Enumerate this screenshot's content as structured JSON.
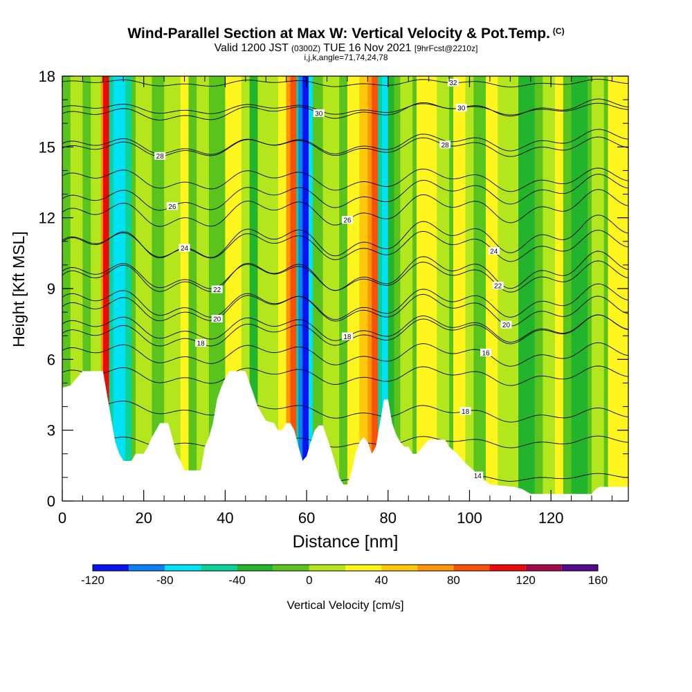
{
  "header": {
    "title": "Wind-Parallel Section at Max W: Vertical Velocity & Pot.Temp.",
    "title_mark": "(C)",
    "subtitle_a": "Valid 1200 JST",
    "subtitle_b": "(0300Z)",
    "subtitle_c": "TUE 16 Nov 2021",
    "subtitle_d": "[9hrFcst@2210z]",
    "params": "i,j,k,angle=71,74,24,78"
  },
  "chart_data": {
    "type": "heatmap",
    "xlabel": "Distance [nm]",
    "ylabel": "Height [Kft MSL]",
    "xlim": [
      0,
      139
    ],
    "ylim": [
      0,
      18
    ],
    "x_ticks": [
      0,
      20,
      40,
      60,
      80,
      100,
      120
    ],
    "y_ticks": [
      0,
      3,
      6,
      9,
      12,
      15,
      18
    ],
    "colorbar": {
      "label": "Vertical Velocity [cm/s]",
      "ticks": [
        -120,
        -80,
        -40,
        0,
        40,
        80,
        120,
        160
      ],
      "bins": [
        {
          "from": -120,
          "to": -100,
          "color": "#0a14f0"
        },
        {
          "from": -100,
          "to": -80,
          "color": "#0a82f5"
        },
        {
          "from": -80,
          "to": -60,
          "color": "#00e1f5"
        },
        {
          "from": -60,
          "to": -40,
          "color": "#0ad29b"
        },
        {
          "from": -40,
          "to": -20,
          "color": "#23b42d"
        },
        {
          "from": -20,
          "to": 0,
          "color": "#5ac31e"
        },
        {
          "from": 0,
          "to": 20,
          "color": "#b4e61e"
        },
        {
          "from": 20,
          "to": 40,
          "color": "#fff51e"
        },
        {
          "from": 40,
          "to": 60,
          "color": "#ffc80a"
        },
        {
          "from": 60,
          "to": 80,
          "color": "#ff960a"
        },
        {
          "from": 80,
          "to": 100,
          "color": "#fa500a"
        },
        {
          "from": 100,
          "to": 120,
          "color": "#eb0a0a"
        },
        {
          "from": 120,
          "to": 140,
          "color": "#a00a4b"
        },
        {
          "from": 140,
          "to": 160,
          "color": "#550a8c"
        }
      ]
    },
    "velocity_bands": [
      {
        "x": 0,
        "w": 139,
        "value": -10
      },
      {
        "x": 2,
        "w": 3,
        "value": 10
      },
      {
        "x": 7,
        "w": 3,
        "value": 10
      },
      {
        "x": 9.5,
        "w": 1.5,
        "value": 70
      },
      {
        "x": 10,
        "w": 1.5,
        "value": 110
      },
      {
        "x": 11.5,
        "w": 1,
        "value": -50
      },
      {
        "x": 12.5,
        "w": 3,
        "value": -70
      },
      {
        "x": 15.5,
        "w": 1.5,
        "value": -50
      },
      {
        "x": 18,
        "w": 4,
        "value": 10
      },
      {
        "x": 25,
        "w": 4,
        "value": 10
      },
      {
        "x": 29,
        "w": 2,
        "value": 30
      },
      {
        "x": 33,
        "w": 3,
        "value": 10
      },
      {
        "x": 40,
        "w": 4,
        "value": 30
      },
      {
        "x": 44,
        "w": 2,
        "value": 10
      },
      {
        "x": 46,
        "w": 2,
        "value": -30
      },
      {
        "x": 48,
        "w": 5,
        "value": 10
      },
      {
        "x": 53,
        "w": 2,
        "value": 30
      },
      {
        "x": 55,
        "w": 2.5,
        "value": 60
      },
      {
        "x": 56,
        "w": 1.5,
        "value": 90
      },
      {
        "x": 57.5,
        "w": 1,
        "value": -60
      },
      {
        "x": 58,
        "w": 1.5,
        "value": -90
      },
      {
        "x": 59,
        "w": 1.5,
        "value": -110
      },
      {
        "x": 60.5,
        "w": 1,
        "value": -70
      },
      {
        "x": 64,
        "w": 4,
        "value": 10
      },
      {
        "x": 70,
        "w": 3,
        "value": 30
      },
      {
        "x": 73,
        "w": 3,
        "value": 50
      },
      {
        "x": 75,
        "w": 2.5,
        "value": 70
      },
      {
        "x": 76,
        "w": 1.5,
        "value": 90
      },
      {
        "x": 77.5,
        "w": 1,
        "value": -50
      },
      {
        "x": 78.5,
        "w": 1.5,
        "value": -70
      },
      {
        "x": 80,
        "w": 1.5,
        "value": -30
      },
      {
        "x": 83,
        "w": 3,
        "value": 10
      },
      {
        "x": 87,
        "w": 5,
        "value": 30
      },
      {
        "x": 92,
        "w": 3,
        "value": 10
      },
      {
        "x": 96,
        "w": 3,
        "value": 30
      },
      {
        "x": 99,
        "w": 2,
        "value": 10
      },
      {
        "x": 104,
        "w": 3,
        "value": 30
      },
      {
        "x": 107,
        "w": 5,
        "value": 10
      },
      {
        "x": 112,
        "w": 4,
        "value": -30
      },
      {
        "x": 118,
        "w": 4,
        "value": 10
      },
      {
        "x": 121,
        "w": 2,
        "value": 30
      },
      {
        "x": 125,
        "w": 4,
        "value": -30
      },
      {
        "x": 130,
        "w": 3,
        "value": 10
      },
      {
        "x": 134,
        "w": 5,
        "value": 30
      }
    ],
    "terrain": [
      {
        "x": 0,
        "h": 4.8
      },
      {
        "x": 2,
        "h": 4.9
      },
      {
        "x": 4,
        "h": 5.3
      },
      {
        "x": 5,
        "h": 5.5
      },
      {
        "x": 10,
        "h": 5.5
      },
      {
        "x": 11,
        "h": 4.5
      },
      {
        "x": 12,
        "h": 3.5
      },
      {
        "x": 13,
        "h": 2.5
      },
      {
        "x": 14,
        "h": 2.0
      },
      {
        "x": 15,
        "h": 1.7
      },
      {
        "x": 17,
        "h": 1.7
      },
      {
        "x": 18,
        "h": 2.0
      },
      {
        "x": 20,
        "h": 2.0
      },
      {
        "x": 21,
        "h": 2.3
      },
      {
        "x": 22,
        "h": 2.7
      },
      {
        "x": 23,
        "h": 3.0
      },
      {
        "x": 24,
        "h": 3.3
      },
      {
        "x": 26,
        "h": 3.3
      },
      {
        "x": 27,
        "h": 2.7
      },
      {
        "x": 28,
        "h": 2.0
      },
      {
        "x": 29,
        "h": 1.7
      },
      {
        "x": 30,
        "h": 1.3
      },
      {
        "x": 34,
        "h": 1.3
      },
      {
        "x": 35,
        "h": 2.3
      },
      {
        "x": 36,
        "h": 2.7
      },
      {
        "x": 37,
        "h": 3.3
      },
      {
        "x": 38,
        "h": 4.3
      },
      {
        "x": 39,
        "h": 4.8
      },
      {
        "x": 40,
        "h": 5.2
      },
      {
        "x": 41,
        "h": 5.5
      },
      {
        "x": 45,
        "h": 5.5
      },
      {
        "x": 46,
        "h": 5.0
      },
      {
        "x": 47,
        "h": 4.5
      },
      {
        "x": 48,
        "h": 4.0
      },
      {
        "x": 49,
        "h": 3.7
      },
      {
        "x": 50,
        "h": 3.4
      },
      {
        "x": 52,
        "h": 3.3
      },
      {
        "x": 53,
        "h": 3.0
      },
      {
        "x": 54,
        "h": 3.0
      },
      {
        "x": 55,
        "h": 3.3
      },
      {
        "x": 56,
        "h": 3.3
      },
      {
        "x": 57,
        "h": 3.0
      },
      {
        "x": 58,
        "h": 2.3
      },
      {
        "x": 58.5,
        "h": 2.0
      },
      {
        "x": 59,
        "h": 1.7
      },
      {
        "x": 60,
        "h": 1.9
      },
      {
        "x": 61,
        "h": 2.5
      },
      {
        "x": 62,
        "h": 3.0
      },
      {
        "x": 63,
        "h": 3.2
      },
      {
        "x": 64,
        "h": 3.2
      },
      {
        "x": 65,
        "h": 2.7
      },
      {
        "x": 66,
        "h": 2.2
      },
      {
        "x": 67,
        "h": 1.6
      },
      {
        "x": 68,
        "h": 1.0
      },
      {
        "x": 69,
        "h": 0.7
      },
      {
        "x": 70,
        "h": 0.7
      },
      {
        "x": 71,
        "h": 1.2
      },
      {
        "x": 72,
        "h": 2.0
      },
      {
        "x": 73,
        "h": 2.5
      },
      {
        "x": 74,
        "h": 2.7
      },
      {
        "x": 75,
        "h": 2.5
      },
      {
        "x": 76,
        "h": 2.0
      },
      {
        "x": 77,
        "h": 2.3
      },
      {
        "x": 78,
        "h": 3.3
      },
      {
        "x": 79,
        "h": 4.3
      },
      {
        "x": 80,
        "h": 4.3
      },
      {
        "x": 81,
        "h": 3.3
      },
      {
        "x": 82,
        "h": 2.8
      },
      {
        "x": 83,
        "h": 2.5
      },
      {
        "x": 84,
        "h": 2.3
      },
      {
        "x": 85,
        "h": 2.3
      },
      {
        "x": 86,
        "h": 2.0
      },
      {
        "x": 87,
        "h": 2.0
      },
      {
        "x": 88,
        "h": 2.2
      },
      {
        "x": 89,
        "h": 2.4
      },
      {
        "x": 90,
        "h": 2.6
      },
      {
        "x": 94,
        "h": 2.6
      },
      {
        "x": 95,
        "h": 2.3
      },
      {
        "x": 97,
        "h": 2.0
      },
      {
        "x": 99,
        "h": 1.6
      },
      {
        "x": 101,
        "h": 1.3
      },
      {
        "x": 103,
        "h": 1.0
      },
      {
        "x": 105,
        "h": 0.7
      },
      {
        "x": 111,
        "h": 0.6
      },
      {
        "x": 113,
        "h": 0.5
      },
      {
        "x": 115,
        "h": 0.3
      },
      {
        "x": 130,
        "h": 0.3
      },
      {
        "x": 131,
        "h": 0.5
      },
      {
        "x": 132,
        "h": 0.6
      },
      {
        "x": 139,
        "h": 0.6
      }
    ],
    "isentropes": [
      {
        "label": "14",
        "lx": 102,
        "base": 1.0,
        "slope": 0.0,
        "amp": 0.2
      },
      {
        "label": "",
        "base": 2.5,
        "slope": 0.0,
        "amp": 0.3
      },
      {
        "label": "18",
        "lx": 99,
        "base": 4.0,
        "slope": -0.003,
        "amp": 0.4
      },
      {
        "label": "",
        "base": 5.3,
        "slope": 0.0,
        "amp": 0.5
      },
      {
        "label": "16",
        "lx": 104,
        "base": 6.2,
        "slope": 0.0,
        "amp": 0.6
      },
      {
        "label": "18",
        "lx": 34,
        "base": 6.9,
        "slope": 0.003,
        "amp": 0.7
      },
      {
        "label": "18",
        "lx": 70,
        "base": 7.3,
        "slope": 0.0,
        "amp": 0.7
      },
      {
        "label": "20",
        "lx": 38,
        "base": 8.0,
        "slope": 0.004,
        "amp": 0.8
      },
      {
        "label": "20",
        "lx": 109,
        "base": 8.4,
        "slope": -0.003,
        "amp": 0.8
      },
      {
        "label": "22",
        "lx": 38,
        "base": 9.3,
        "slope": 0.004,
        "amp": 0.9
      },
      {
        "label": "22",
        "lx": 107,
        "base": 9.5,
        "slope": 0.0,
        "amp": 0.8
      },
      {
        "label": "24",
        "lx": 30,
        "base": 10.7,
        "slope": 0.005,
        "amp": 0.9
      },
      {
        "label": "24",
        "lx": 106,
        "base": 10.8,
        "slope": 0.0,
        "amp": 0.8
      },
      {
        "label": "26",
        "lx": 70,
        "base": 12.0,
        "slope": 0.004,
        "amp": 0.8
      },
      {
        "label": "26",
        "lx": 27,
        "base": 12.6,
        "slope": 0.005,
        "amp": 0.7
      },
      {
        "label": "",
        "base": 13.6,
        "slope": 0.0,
        "amp": 0.6
      },
      {
        "label": "28",
        "lx": 24,
        "base": 14.8,
        "slope": 0.004,
        "amp": 0.5
      },
      {
        "label": "28",
        "lx": 94,
        "base": 15.0,
        "slope": 0.0,
        "amp": 0.5
      },
      {
        "label": "30",
        "lx": 63,
        "base": 16.3,
        "slope": 0.003,
        "amp": 0.4
      },
      {
        "label": "30",
        "lx": 98,
        "base": 16.6,
        "slope": 0.0,
        "amp": 0.3
      },
      {
        "label": "32",
        "lx": 96,
        "base": 17.7,
        "slope": 0.0,
        "amp": 0.2
      }
    ]
  }
}
